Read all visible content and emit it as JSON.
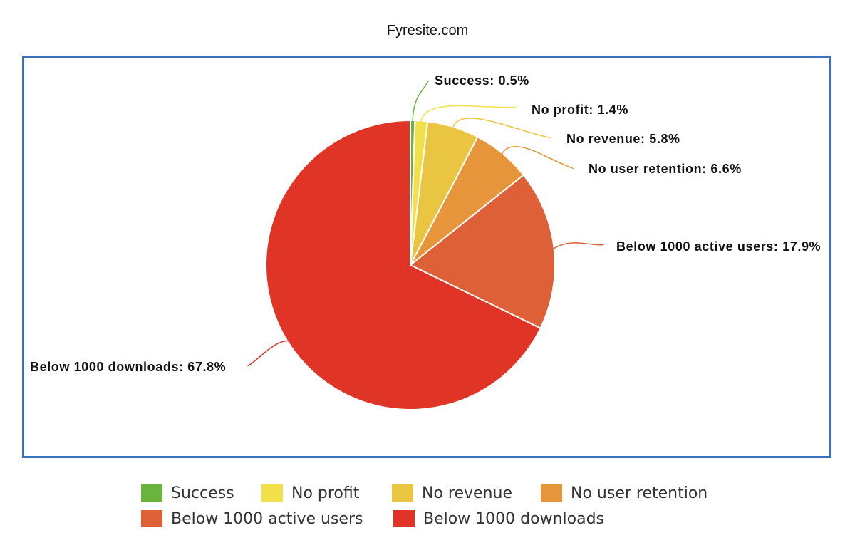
{
  "chart_data": {
    "type": "pie",
    "title": "Fyresite.com",
    "slices": [
      {
        "name": "Success",
        "value": 0.5,
        "label": "Success: 0.5%",
        "color": "#6ab43e"
      },
      {
        "name": "No profit",
        "value": 1.4,
        "label": "No profit: 1.4%",
        "color": "#f1e04a"
      },
      {
        "name": "No revenue",
        "value": 5.8,
        "label": "No revenue: 5.8%",
        "color": "#eac542"
      },
      {
        "name": "No user retention",
        "value": 6.6,
        "label": "No user retention: 6.6%",
        "color": "#e6953a"
      },
      {
        "name": "Below 1000 active users",
        "value": 17.9,
        "label": "Below 1000 active users: 17.9%",
        "color": "#de6037"
      },
      {
        "name": "Below 1000 downloads",
        "value": 67.8,
        "label": "Below 1000 downloads: 67.8%",
        "color": "#e03426"
      }
    ],
    "legend_position": "bottom"
  }
}
